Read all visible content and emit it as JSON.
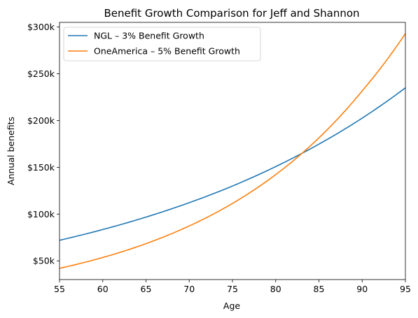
{
  "chart_data": {
    "type": "line",
    "title": "Benefit Growth Comparison for Jeff and Shannon",
    "xlabel": "Age",
    "ylabel": "Annual benefits",
    "xlim": [
      55,
      95
    ],
    "ylim": [
      30000,
      305000
    ],
    "xticks": [
      55,
      60,
      65,
      70,
      75,
      80,
      85,
      90,
      95
    ],
    "xtick_labels": [
      "55",
      "60",
      "65",
      "70",
      "75",
      "80",
      "85",
      "90",
      "95"
    ],
    "yticks": [
      50000,
      100000,
      150000,
      200000,
      250000,
      300000
    ],
    "ytick_labels": [
      "$50k",
      "$100k",
      "$150k",
      "$200k",
      "$250k",
      "$300k"
    ],
    "grid": false,
    "legend_position": "top-left",
    "x": [
      55,
      60,
      65,
      70,
      75,
      80,
      85,
      90,
      95
    ],
    "series": [
      {
        "name": "NGL – 3% Benefit Growth",
        "color": "#1f77b4",
        "values": [
          72000,
          83500,
          96800,
          112200,
          130000,
          150800,
          174800,
          202600,
          235000
        ]
      },
      {
        "name": "OneAmerica – 5% Benefit Growth",
        "color": "#ff7f0e",
        "values": [
          42000,
          53600,
          68400,
          87300,
          111400,
          142200,
          181500,
          231700,
          293000
        ]
      }
    ]
  }
}
